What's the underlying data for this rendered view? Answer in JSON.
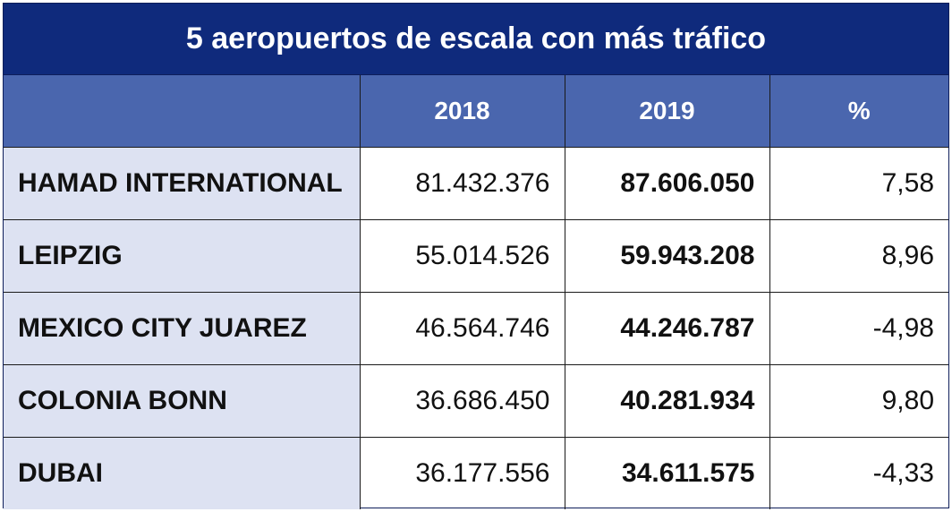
{
  "title": "5 aeropuertos de escala con más tráfico",
  "header": {
    "col0": "",
    "col1": "2018",
    "col2": "2019",
    "col3": "%"
  },
  "rows": [
    {
      "name": "HAMAD INTERNATIONAL",
      "y2018": "81.432.376",
      "y2019": "87.606.050",
      "pct": "7,58"
    },
    {
      "name": "LEIPZIG",
      "y2018": "55.014.526",
      "y2019": "59.943.208",
      "pct": "8,96"
    },
    {
      "name": "MEXICO CITY JUAREZ",
      "y2018": "46.564.746",
      "y2019": "44.246.787",
      "pct": "-4,98"
    },
    {
      "name": "COLONIA BONN",
      "y2018": "36.686.450",
      "y2019": "40.281.934",
      "pct": "9,80"
    },
    {
      "name": "DUBAI",
      "y2018": "36.177.556",
      "y2019": "34.611.575",
      "pct": "-4,33"
    }
  ],
  "colors": {
    "title_bg": "#0f2a7c",
    "header_bg": "#4a66ae",
    "name_cell_bg": "#dde2f2"
  },
  "chart_data": {
    "type": "table",
    "title": "5 aeropuertos de escala con más tráfico",
    "columns": [
      "",
      "2018",
      "2019",
      "%"
    ],
    "categories": [
      "HAMAD INTERNATIONAL",
      "LEIPZIG",
      "MEXICO CITY JUAREZ",
      "COLONIA BONN",
      "DUBAI"
    ],
    "series": [
      {
        "name": "2018",
        "values": [
          81432376,
          55014526,
          46564746,
          36686450,
          36177556
        ]
      },
      {
        "name": "2019",
        "values": [
          87606050,
          59943208,
          44246787,
          40281934,
          34611575
        ]
      },
      {
        "name": "%",
        "values": [
          7.58,
          8.96,
          -4.98,
          9.8,
          -4.33
        ]
      }
    ]
  }
}
